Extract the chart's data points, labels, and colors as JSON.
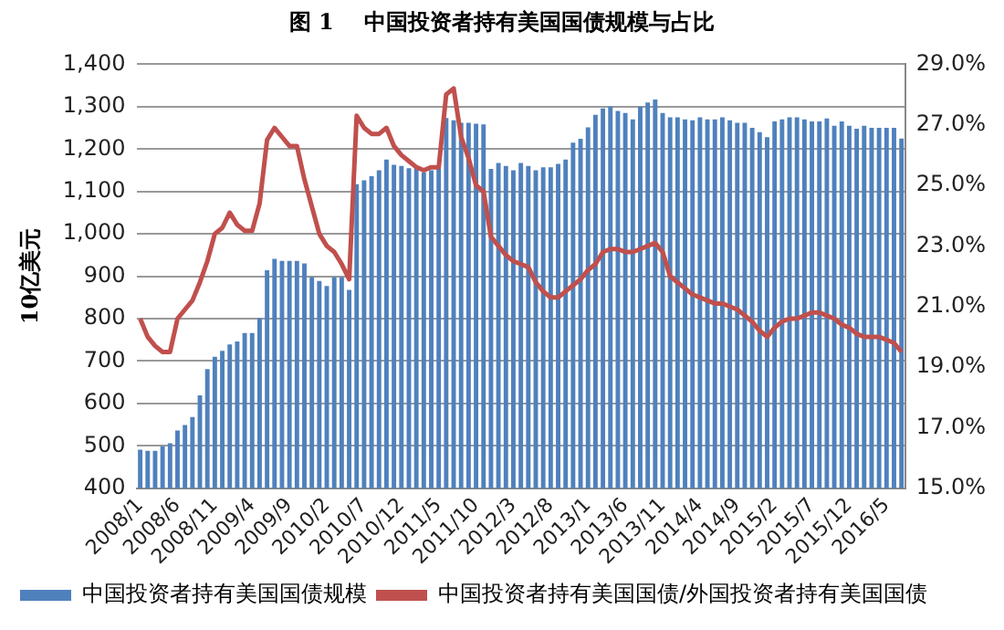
{
  "chart_data": {
    "type": "bar",
    "title": "图 1    中国投资者持有美国国债规模与占比",
    "ylabel": "10亿美元",
    "categories": [
      "2008/1",
      null,
      null,
      null,
      null,
      "2008/6",
      null,
      null,
      null,
      null,
      "2008/11",
      null,
      null,
      null,
      null,
      "2009/4",
      null,
      null,
      null,
      null,
      "2009/9",
      null,
      null,
      null,
      null,
      "2010/2",
      null,
      null,
      null,
      null,
      "2010/7",
      null,
      null,
      null,
      null,
      "2010/12",
      null,
      null,
      null,
      null,
      "2011/5",
      null,
      null,
      null,
      null,
      "2011/10",
      null,
      null,
      null,
      null,
      "2012/3",
      null,
      null,
      null,
      null,
      "2012/8",
      null,
      null,
      null,
      null,
      "2013/1",
      null,
      null,
      null,
      null,
      "2013/6",
      null,
      null,
      null,
      null,
      "2013/11",
      null,
      null,
      null,
      null,
      "2014/4",
      null,
      null,
      null,
      null,
      "2014/9",
      null,
      null,
      null,
      null,
      "2015/2",
      null,
      null,
      null,
      null,
      "2015/7",
      null,
      null,
      null,
      null,
      "2015/12",
      null,
      null,
      null,
      null,
      "2016/5",
      null,
      null
    ],
    "series": [
      {
        "name": "中国投资者持有美国国债规模",
        "color": "#4f81bd",
        "values": [
          491,
          488,
          488,
          499,
          506,
          536,
          549,
          568,
          619,
          681,
          710,
          724,
          739,
          746,
          766,
          766,
          801,
          914,
          941,
          936,
          936,
          936,
          930,
          898,
          889,
          877,
          898,
          898,
          868,
          1117,
          1126,
          1136,
          1150,
          1175,
          1163,
          1160,
          1155,
          1154,
          1145,
          1150,
          1155,
          1273,
          1268,
          1262,
          1262,
          1260,
          1258,
          1153,
          1167,
          1160,
          1150,
          1167,
          1160,
          1150,
          1157,
          1157,
          1165,
          1175,
          1215,
          1224,
          1251,
          1281,
          1296,
          1300,
          1290,
          1285,
          1270,
          1300,
          1310,
          1317,
          1285,
          1275,
          1275,
          1270,
          1268,
          1275,
          1270,
          1270,
          1275,
          1268,
          1262,
          1262,
          1250,
          1240,
          1228,
          1265,
          1270,
          1275,
          1275,
          1270,
          1265,
          1265,
          1272,
          1255,
          1265,
          1255,
          1248,
          1255,
          1250,
          1250,
          1250,
          1250,
          1225
        ]
      },
      {
        "name": "中国投资者持有美国国债/外国投资者持有美国国债",
        "type": "line",
        "axis": "y2",
        "color": "#c0504d",
        "values": [
          20.6,
          20.0,
          19.7,
          19.5,
          19.5,
          20.6,
          20.9,
          21.2,
          21.8,
          22.5,
          23.4,
          23.6,
          24.1,
          23.7,
          23.5,
          23.5,
          24.4,
          26.5,
          26.9,
          26.6,
          26.3,
          26.3,
          25.2,
          24.3,
          23.4,
          23.0,
          22.8,
          22.4,
          21.9,
          27.3,
          26.9,
          26.7,
          26.7,
          26.9,
          26.3,
          26.0,
          25.8,
          25.6,
          25.5,
          25.6,
          25.6,
          28.0,
          28.2,
          26.6,
          25.9,
          25.0,
          24.8,
          23.3,
          23.0,
          22.7,
          22.5,
          22.4,
          22.3,
          21.8,
          21.5,
          21.3,
          21.3,
          21.5,
          21.7,
          21.9,
          22.2,
          22.4,
          22.8,
          22.9,
          22.9,
          22.8,
          22.8,
          22.9,
          23.0,
          23.1,
          22.8,
          22.0,
          21.8,
          21.6,
          21.4,
          21.3,
          21.2,
          21.1,
          21.1,
          21.0,
          20.9,
          20.7,
          20.5,
          20.2,
          20.0,
          20.3,
          20.5,
          20.6,
          20.6,
          20.7,
          20.8,
          20.8,
          20.7,
          20.6,
          20.4,
          20.3,
          20.1,
          20.0,
          20.0,
          20.0,
          19.9,
          19.8,
          19.5
        ]
      }
    ],
    "ylim": [
      400,
      1400
    ],
    "yticks": [
      {
        "value": 400,
        "label": "400"
      },
      {
        "value": 500,
        "label": "500"
      },
      {
        "value": 600,
        "label": "600"
      },
      {
        "value": 700,
        "label": "700"
      },
      {
        "value": 800,
        "label": "800"
      },
      {
        "value": 900,
        "label": "900"
      },
      {
        "value": 1000,
        "label": "1,000"
      },
      {
        "value": 1100,
        "label": "1,100"
      },
      {
        "value": 1200,
        "label": "1,200"
      },
      {
        "value": 1300,
        "label": "1,300"
      },
      {
        "value": 1400,
        "label": "1,400"
      }
    ],
    "y2lim": [
      15,
      29
    ],
    "y2ticks": [
      {
        "value": 15,
        "label": "15.0%"
      },
      {
        "value": 17,
        "label": "17.0%"
      },
      {
        "value": 19,
        "label": "19.0%"
      },
      {
        "value": 21,
        "label": "21.0%"
      },
      {
        "value": 23,
        "label": "23.0%"
      },
      {
        "value": 25,
        "label": "25.0%"
      },
      {
        "value": 27,
        "label": "27.0%"
      },
      {
        "value": 29,
        "label": "29.0%"
      }
    ],
    "grid": "y",
    "legend": "bottom",
    "marker": "none",
    "line_style": "solid"
  }
}
